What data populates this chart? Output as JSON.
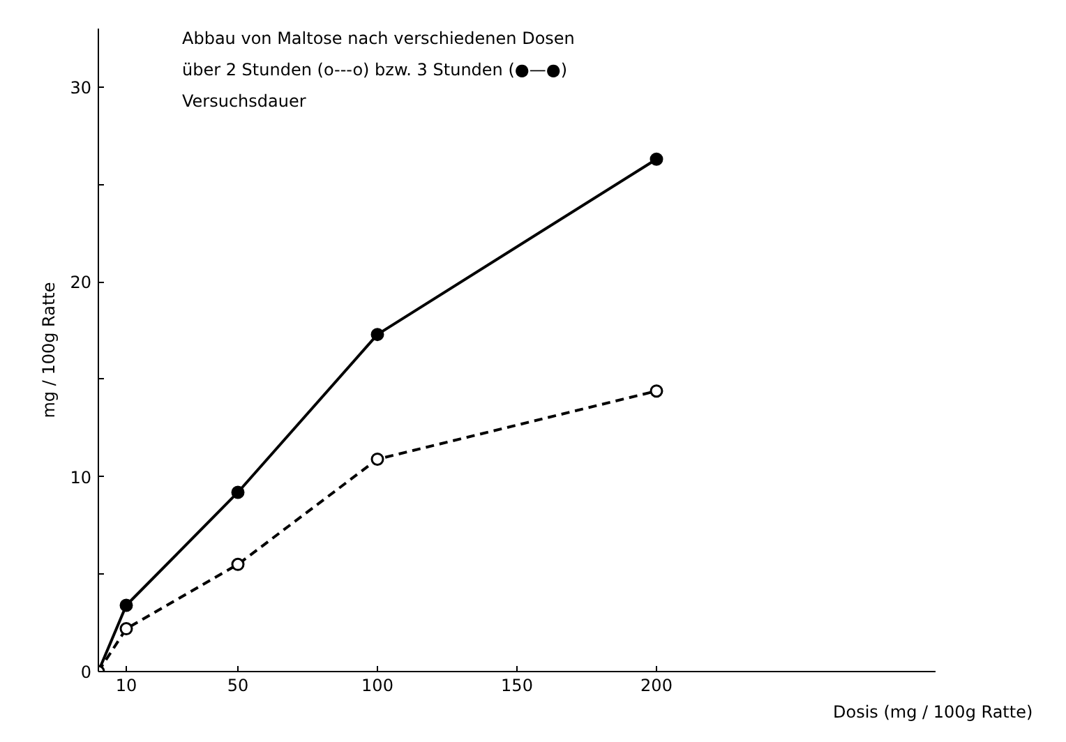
{
  "chart_data": {
    "type": "line",
    "title": "Abbau von Maltose nach verschiedenen Dosen\nüber  2 Stunden (o---o) bzw.  3 Stunden (●—●)\nVersuchsdauer",
    "xlabel": "Dosis  (mg / 100g Ratte)",
    "ylabel": "mg / 100g Ratte",
    "x": [
      0,
      10,
      50,
      100,
      200
    ],
    "series": [
      {
        "color": "#000000",
        "values": [
          0,
          3.4,
          9.2,
          17.3,
          26.3
        ],
        "line_style": "solid"
      },
      {
        "color": "#000000",
        "values": [
          0,
          2.2,
          5.5,
          10.9,
          14.4
        ],
        "line_style": "dashed"
      }
    ],
    "xlim": [
      0,
      300
    ],
    "ylim": [
      0,
      33
    ],
    "xticks": [
      10,
      50,
      100,
      150,
      200
    ],
    "yticks": [
      0,
      {
        "value": 5,
        "label": null
      },
      10,
      {
        "value": 15,
        "label": null
      },
      20,
      {
        "value": 25,
        "label": null
      },
      30
    ],
    "grid": false,
    "marker": "circle"
  }
}
